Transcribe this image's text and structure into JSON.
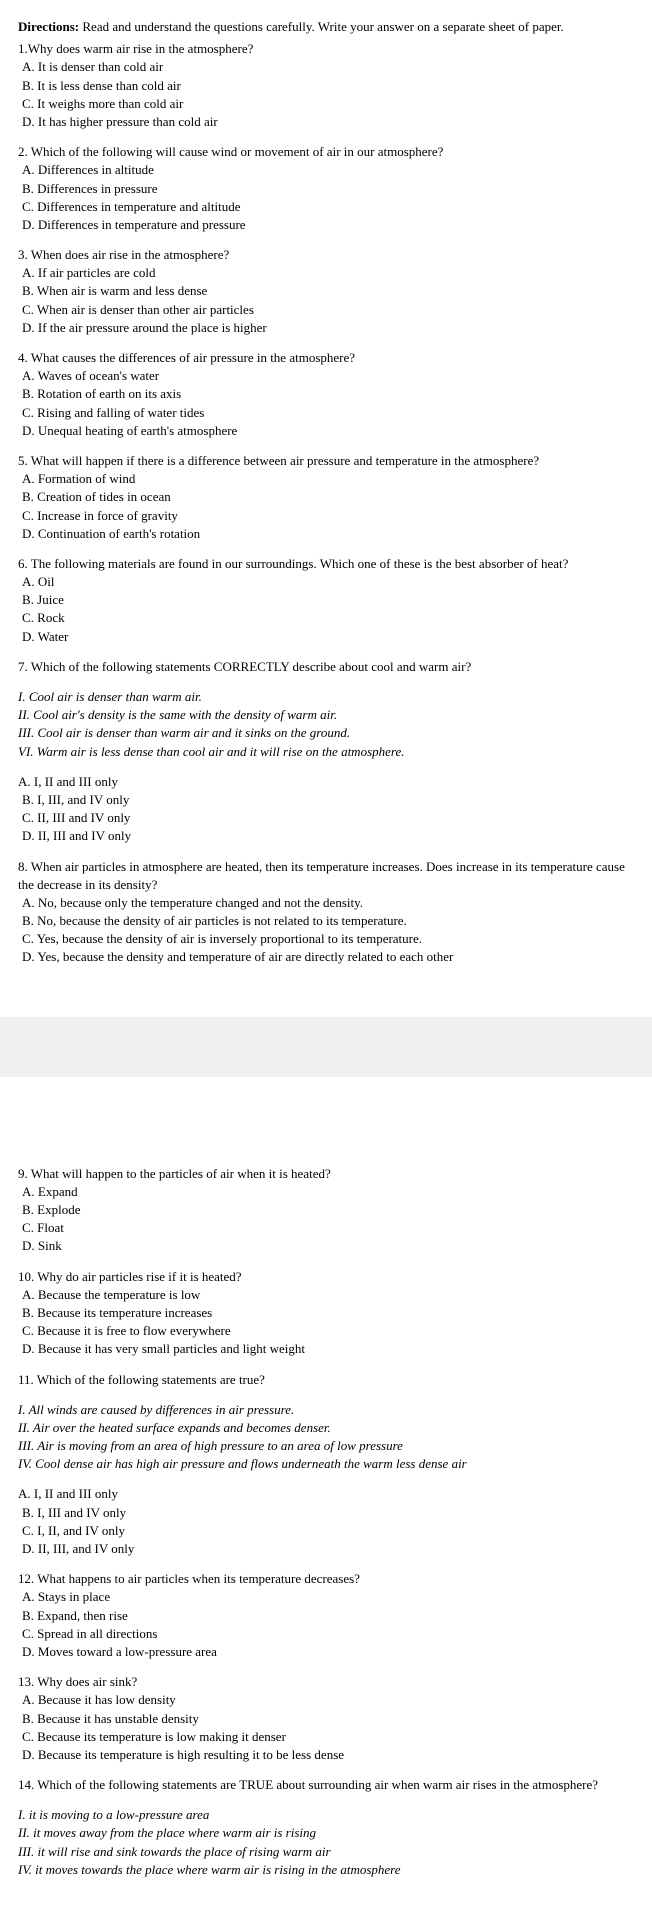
{
  "directions": {
    "label": "Directions:",
    "text": " Read and understand the questions carefully. Write your answer on a separate sheet of paper."
  },
  "page1": {
    "q1": {
      "text": "1.Why does warm air rise in the atmosphere?",
      "a": "A. It is denser than cold air",
      "b": "B. It is less dense than cold air",
      "c": "C. It weighs more than cold air",
      "d": "D. It has higher pressure than cold air"
    },
    "q2": {
      "text": "2. Which of the following will cause wind or movement of air in our atmosphere?",
      "a": "A. Differences in altitude",
      "b": "B. Differences in pressure",
      "c": "C. Differences in temperature and altitude",
      "d": "D. Differences in temperature and pressure"
    },
    "q3": {
      "text": "3. When does air rise in the atmosphere?",
      "a": "A. If air particles are cold",
      "b": "B. When air is warm and less dense",
      "c": "C. When air is denser than other air particles",
      "d": "D. If the air pressure around the place is higher"
    },
    "q4": {
      "text": "4. What causes the differences of air pressure in the atmosphere?",
      "a": "A. Waves of ocean's water",
      "b": "B. Rotation of earth on its axis",
      "c": "C. Rising and falling of water tides",
      "d": "D. Unequal heating of earth's atmosphere"
    },
    "q5": {
      "text": "5. What will happen if there is a difference between air pressure and temperature in the atmosphere?",
      "a": "A. Formation of wind",
      "b": "B. Creation of tides in ocean",
      "c": "C. Increase in force of gravity",
      "d": "D. Continuation of earth's rotation"
    },
    "q6": {
      "text": "6. The following materials are found in our surroundings. Which one of these is the best absorber of heat?",
      "a": "A. Oil",
      "b": "B. Juice",
      "c": "C. Rock",
      "d": "D. Water"
    },
    "q7": {
      "text": "7. Which of the following statements CORRECTLY describe about cool and warm air?",
      "s1": "I. Cool air is denser than warm air.",
      "s2": "II. Cool air's density is the same with the density of warm air.",
      "s3": "III. Cool air is denser than warm air and it sinks on the ground.",
      "s4": "VI. Warm air is less dense than cool air and it will rise on the atmosphere.",
      "a": "A. I, II and III only",
      "b": "B. I, III, and IV only",
      "c": "C. II, III and IV only",
      "d": "D. II, III and IV only"
    },
    "q8": {
      "text": "8. When air particles in atmosphere are heated, then its temperature increases. Does increase in its temperature cause the decrease in its density?",
      "a": "A. No, because only the temperature changed and not the density.",
      "b": "B. No, because the density of air particles is not related to its temperature.",
      "c": "C. Yes, because the density of air is inversely proportional to its temperature.",
      "d": "D. Yes, because the density and temperature of air are directly related to each other"
    }
  },
  "page2": {
    "q9": {
      "text": "9. What will happen to the particles of air when it is heated?",
      "a": "A. Expand",
      "b": "B. Explode",
      "c": "C. Float",
      "d": "D. Sink"
    },
    "q10": {
      "text": "10. Why do air particles rise if it is heated?",
      "a": "A. Because the temperature is low",
      "b": "B. Because its temperature increases",
      "c": "C. Because it is free to flow everywhere",
      "d": "D. Because it has very small particles and light weight"
    },
    "q11": {
      "text": "11. Which of the following statements are true?",
      "s1": "I. All winds are caused by differences in air pressure.",
      "s2": "II. Air over the heated surface expands and becomes denser.",
      "s3": "III. Air is moving from an area of high pressure to an area of low pressure",
      "s4": "IV. Cool dense air has high air pressure and flows underneath the warm less dense air",
      "a": "A. I, II and III only",
      "b": "B. I, III and IV only",
      "c": "C. I, II, and IV only",
      "d": "D. II, III, and IV only"
    },
    "q12": {
      "text": "12. What happens to air particles when its temperature decreases?",
      "a": "A. Stays in place",
      "b": "B. Expand, then rise",
      "c": "C. Spread in all directions",
      "d": "D. Moves toward a low-pressure area"
    },
    "q13": {
      "text": "13. Why does air sink?",
      "a": "A. Because it has low density",
      "b": "B. Because it has unstable density",
      "c": "C. Because its temperature is low making it denser",
      "d": "D. Because its temperature is high resulting it to be less dense"
    },
    "q14": {
      "text": "14. Which of the following statements are TRUE about surrounding air when warm air rises in the atmosphere?",
      "s1": "I. it is moving to a low-pressure area",
      "s2": "II. it moves away from the place where warm air is rising",
      "s3": "III. it will rise and sink towards the place of rising warm air",
      "s4": "IV. it moves towards the place where warm air is rising in the atmosphere"
    }
  }
}
